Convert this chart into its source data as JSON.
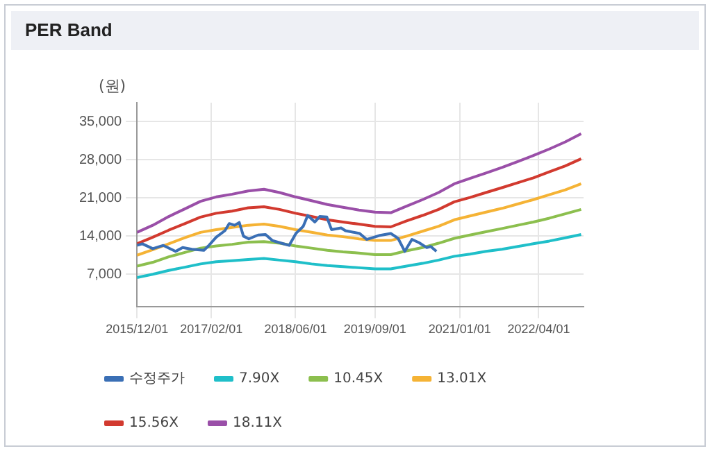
{
  "chart_data": {
    "type": "line",
    "title": "PER Band",
    "ylabel": "(원)",
    "xlim": [
      "2015-12-01",
      "2022-12-15"
    ],
    "xticks": [
      {
        "value": "2015-12-01",
        "label": "2015/12/01"
      },
      {
        "value": "2017-02-01",
        "label": "2017/02/01"
      },
      {
        "value": "2018-06-01",
        "label": "2018/06/01"
      },
      {
        "value": "2019-09-01",
        "label": "2019/09/01"
      },
      {
        "value": "2021-01-01",
        "label": "2021/01/01"
      },
      {
        "value": "2022-04-01",
        "label": "2022/04/01"
      }
    ],
    "ylim": [
      1000,
      38500
    ],
    "yticks": [
      {
        "value": 7000,
        "label": "7,000"
      },
      {
        "value": 14000,
        "label": "14,000"
      },
      {
        "value": 21000,
        "label": "21,000"
      },
      {
        "value": 28000,
        "label": "28,000"
      },
      {
        "value": 35000,
        "label": "35,000"
      }
    ],
    "grid": true,
    "legend": "bottom",
    "marker": "none",
    "line_style": "solid",
    "x": [
      "2015-12-01",
      "2016-03-01",
      "2016-06-01",
      "2016-09-01",
      "2016-12-01",
      "2017-03-01",
      "2017-06-01",
      "2017-09-01",
      "2017-12-01",
      "2018-03-01",
      "2018-06-01",
      "2018-09-01",
      "2018-12-01",
      "2019-03-01",
      "2019-06-01",
      "2019-09-01",
      "2019-12-01",
      "2020-03-01",
      "2020-06-01",
      "2020-09-01",
      "2020-12-01",
      "2021-03-01",
      "2021-06-01",
      "2021-09-01",
      "2021-12-01",
      "2022-03-01",
      "2022-06-01",
      "2022-09-01",
      "2022-12-01"
    ],
    "series": [
      {
        "name": "수정주가",
        "color": "#3a6fb5",
        "x": [
          "2015-12-01",
          "2016-01-01",
          "2016-03-01",
          "2016-05-01",
          "2016-07-10",
          "2016-08-20",
          "2016-10-12",
          "2016-12-20",
          "2017-01-15",
          "2017-03-01",
          "2017-04-20",
          "2017-05-15",
          "2017-06-15",
          "2017-07-12",
          "2017-08-05",
          "2017-09-05",
          "2017-10-28",
          "2017-12-10",
          "2018-01-18",
          "2018-03-01",
          "2018-04-25",
          "2018-06-03",
          "2018-07-15",
          "2018-08-10",
          "2018-09-20",
          "2018-10-18",
          "2018-11-28",
          "2018-12-25",
          "2019-02-18",
          "2019-03-15",
          "2019-06-05",
          "2019-07-15",
          "2019-09-25",
          "2019-12-01",
          "2020-01-12",
          "2020-02-20",
          "2020-04-01",
          "2020-05-12",
          "2020-06-25",
          "2020-07-18",
          "2020-08-20"
        ],
        "values": [
          12300,
          12600,
          11700,
          12300,
          11200,
          11900,
          11600,
          11400,
          12200,
          13800,
          15000,
          16300,
          16000,
          16500,
          14000,
          13500,
          14200,
          14300,
          13200,
          12800,
          12300,
          14500,
          15800,
          17800,
          16600,
          17600,
          17500,
          15200,
          15500,
          15000,
          14500,
          13400,
          14100,
          14500,
          13600,
          11200,
          13400,
          12800,
          11900,
          12100,
          11200
        ]
      },
      {
        "name": "7.90X",
        "color": "#1fbfc9",
        "values": [
          6400,
          7000,
          7700,
          8300,
          8900,
          9300,
          9500,
          9700,
          9900,
          9600,
          9300,
          8900,
          8600,
          8400,
          8200,
          8000,
          8000,
          8500,
          9000,
          9600,
          10300,
          10700,
          11200,
          11600,
          12100,
          12600,
          13100,
          13700,
          14300
        ]
      },
      {
        "name": "10.45X",
        "color": "#8cbf4e",
        "values": [
          8500,
          9200,
          10200,
          11000,
          11800,
          12200,
          12500,
          12900,
          13000,
          12700,
          12200,
          11800,
          11400,
          11100,
          10900,
          10600,
          10600,
          11300,
          11900,
          12700,
          13600,
          14200,
          14800,
          15400,
          16000,
          16600,
          17300,
          18100,
          18900
        ]
      },
      {
        "name": "13.01X",
        "color": "#f5b335",
        "values": [
          10500,
          11500,
          12600,
          13700,
          14700,
          15200,
          15600,
          16000,
          16200,
          15800,
          15200,
          14700,
          14200,
          13900,
          13500,
          13200,
          13200,
          14000,
          14900,
          15800,
          17000,
          17700,
          18400,
          19100,
          19900,
          20700,
          21600,
          22500,
          23600
        ]
      },
      {
        "name": "15.56X",
        "color": "#d23a2f",
        "values": [
          12600,
          13800,
          15100,
          16300,
          17500,
          18200,
          18600,
          19200,
          19400,
          18900,
          18200,
          17600,
          17000,
          16600,
          16200,
          15800,
          15700,
          16800,
          17800,
          18900,
          20300,
          21100,
          22000,
          22900,
          23800,
          24700,
          25800,
          26900,
          28200
        ]
      },
      {
        "name": "18.11X",
        "color": "#9a4fa8",
        "values": [
          14700,
          16000,
          17600,
          19000,
          20400,
          21200,
          21700,
          22300,
          22600,
          22000,
          21200,
          20500,
          19800,
          19300,
          18800,
          18400,
          18300,
          19500,
          20700,
          22000,
          23600,
          24600,
          25600,
          26600,
          27700,
          28800,
          30000,
          31300,
          32800
        ]
      }
    ]
  }
}
